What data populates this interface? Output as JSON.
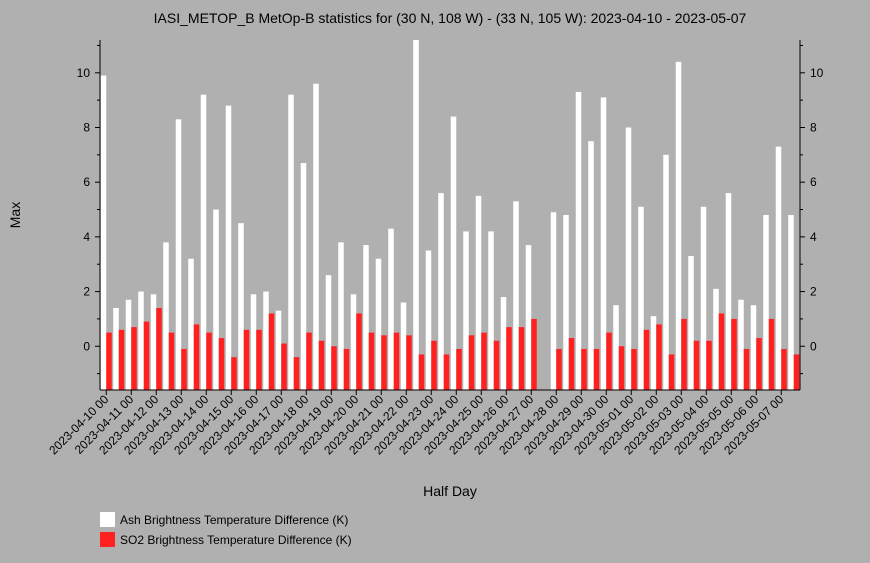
{
  "chart_data": {
    "type": "bar",
    "title": "IASI_METOP_B MetOp-B statistics for (30 N, 108 W) - (33 N, 105 W): 2023-04-10 - 2023-05-07",
    "xlabel": "Half Day",
    "ylabel": "Max",
    "ylim": [
      -1.6,
      11.2
    ],
    "yticks": [
      0,
      2,
      4,
      6,
      8,
      10
    ],
    "grid": false,
    "legend_position": "bottom-left",
    "tick_labels": [
      "2023-04-10 00",
      "2023-04-11 00",
      "2023-04-12 00",
      "2023-04-13 00",
      "2023-04-14 00",
      "2023-04-15 00",
      "2023-04-16 00",
      "2023-04-17 00",
      "2023-04-18 00",
      "2023-04-19 00",
      "2023-04-20 00",
      "2023-04-21 00",
      "2023-04-22 00",
      "2023-04-23 00",
      "2023-04-24 00",
      "2023-04-25 00",
      "2023-04-26 00",
      "2023-04-27 00",
      "2023-04-28 00",
      "2023-04-29 00",
      "2023-04-30 00",
      "2023-05-01 00",
      "2023-05-02 00",
      "2023-05-03 00",
      "2023-05-04 00",
      "2023-05-05 00",
      "2023-05-06 00",
      "2023-05-07 00"
    ],
    "series": [
      {
        "name": "Ash Brightness Temperature Difference (K)",
        "color": "#ffffff",
        "values": [
          9.9,
          1.4,
          1.7,
          2.0,
          1.9,
          3.8,
          8.3,
          3.2,
          9.2,
          5.0,
          8.8,
          4.5,
          1.9,
          2.0,
          1.3,
          9.2,
          6.7,
          9.6,
          2.6,
          3.8,
          1.9,
          3.7,
          3.2,
          4.3,
          1.6,
          11.2,
          3.5,
          5.6,
          8.4,
          4.2,
          5.5,
          4.2,
          1.8,
          5.3,
          3.7,
          null,
          4.9,
          4.8,
          9.3,
          7.5,
          9.1,
          1.5,
          8.0,
          5.1,
          1.1,
          7.0,
          10.4,
          3.3,
          5.1,
          2.1,
          5.6,
          1.7,
          1.5,
          4.8,
          7.3,
          4.8
        ]
      },
      {
        "name": "SO2 Brightness Temperature Difference (K)",
        "color": "#ff2020",
        "values": [
          0.5,
          0.6,
          0.7,
          0.9,
          1.4,
          0.5,
          -0.1,
          0.8,
          0.5,
          0.3,
          -0.4,
          0.6,
          0.6,
          1.2,
          0.1,
          -0.4,
          0.5,
          0.2,
          0.0,
          -0.1,
          1.2,
          0.5,
          0.4,
          0.5,
          0.4,
          -0.3,
          0.2,
          -0.3,
          -0.1,
          0.4,
          0.5,
          0.2,
          0.7,
          0.7,
          1.0,
          null,
          -0.1,
          0.3,
          -0.1,
          -0.1,
          0.5,
          0.0,
          -0.1,
          0.6,
          0.8,
          -0.3,
          1.0,
          0.2,
          0.2,
          1.2,
          1.0,
          -0.1,
          0.3,
          1.0,
          -0.1,
          -0.3
        ]
      }
    ]
  },
  "legend": {
    "items": [
      {
        "label": "Ash Brightness Temperature Difference (K)",
        "color": "#ffffff"
      },
      {
        "label": "SO2 Brightness Temperature Difference (K)",
        "color": "#ff2020"
      }
    ]
  }
}
